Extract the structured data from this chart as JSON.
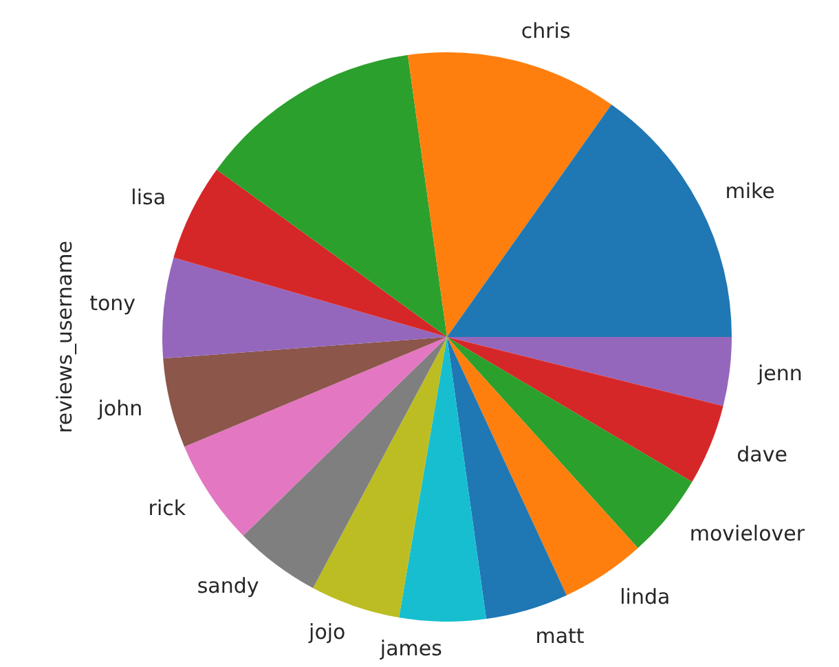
{
  "chart_data": {
    "type": "pie",
    "ylabel": "reviews_username",
    "categories": [
      "mike",
      "chris",
      null,
      "lisa",
      "tony",
      "john",
      "rick",
      "sandy",
      "jojo",
      "james",
      "matt",
      "linda",
      "movielover",
      "dave",
      "jenn"
    ],
    "values": [
      15.2,
      12.0,
      12.8,
      5.5,
      5.7,
      5.1,
      6.0,
      4.9,
      5.1,
      4.9,
      4.7,
      4.8,
      4.8,
      4.6,
      3.9
    ],
    "colors": [
      "#1f77b4",
      "#ff7f0e",
      "#2ca02c",
      "#d62728",
      "#9467bd",
      "#8c564b",
      "#e377c2",
      "#7f7f7f",
      "#bcbd22",
      "#17becf",
      "#1f77b4",
      "#ff7f0e",
      "#2ca02c",
      "#d62728",
      "#9467bd"
    ],
    "legend": false
  }
}
